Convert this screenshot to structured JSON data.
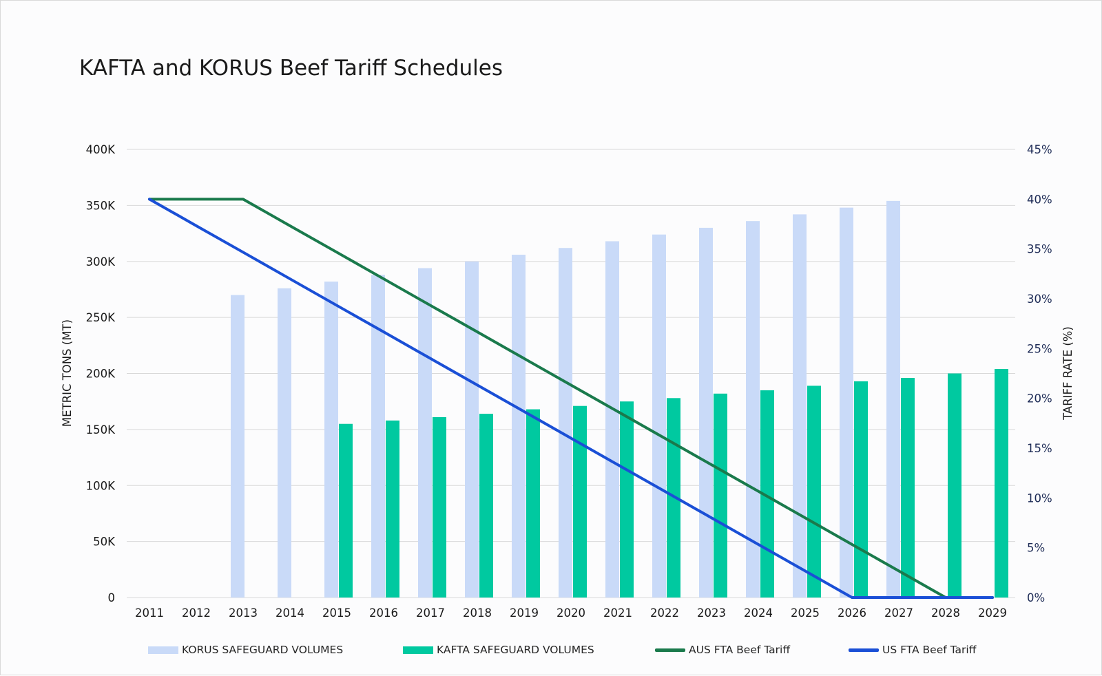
{
  "chart_data": {
    "type": "bar",
    "title": "KAFTA and KORUS Beef Tariff Schedules",
    "ylabel": "METRIC TONS (MT)",
    "y2label": "TARIFF RATE (%)",
    "ylim": [
      0,
      400000
    ],
    "y2lim": [
      0,
      45
    ],
    "y_ticks": [
      "0",
      "50K",
      "100K",
      "150K",
      "200K",
      "250K",
      "300K",
      "350K",
      "400K"
    ],
    "y2_ticks": [
      "0%",
      "5%",
      "10%",
      "15%",
      "20%",
      "25%",
      "30%",
      "35%",
      "40%",
      "45%"
    ],
    "categories": [
      "2011",
      "2012",
      "2013",
      "2014",
      "2015",
      "2016",
      "2017",
      "2018",
      "2019",
      "2020",
      "2021",
      "2022",
      "2023",
      "2024",
      "2025",
      "2026",
      "2027",
      "2028",
      "2029"
    ],
    "grid": true,
    "legend_position": "bottom",
    "series": [
      {
        "name": "KORUS SAFEGUARD VOLUMES",
        "kind": "bar",
        "axis": "left",
        "color": "#c9daf8",
        "values": [
          null,
          270000,
          276000,
          282000,
          288000,
          294000,
          300000,
          306000,
          312000,
          318000,
          324000,
          330000,
          336000,
          342000,
          348000,
          354000,
          null,
          null,
          null
        ]
      },
      {
        "name": "KAFTA SAFEGUARD VOLUMES",
        "kind": "bar",
        "axis": "left",
        "color": "#00c9a0",
        "values": [
          null,
          null,
          null,
          155000,
          158000,
          161000,
          164000,
          168000,
          171000,
          175000,
          178000,
          182000,
          185000,
          189000,
          193000,
          196000,
          200000,
          204000,
          null
        ]
      },
      {
        "name": "AUS FTA Beef Tariff",
        "kind": "line",
        "axis": "right",
        "color": "#1a7a4c",
        "values": [
          40,
          40,
          40,
          37.33,
          34.67,
          32,
          29.33,
          26.67,
          24,
          21.33,
          18.67,
          16,
          13.33,
          10.67,
          8,
          5.33,
          2.67,
          0,
          0
        ]
      },
      {
        "name": "US FTA Beef Tariff",
        "kind": "line",
        "axis": "right",
        "color": "#1a4fd6",
        "values": [
          40,
          37.33,
          34.67,
          32,
          29.33,
          26.67,
          24,
          21.33,
          18.67,
          16,
          13.33,
          10.67,
          8,
          5.33,
          2.67,
          0,
          0,
          0,
          0
        ]
      }
    ]
  }
}
